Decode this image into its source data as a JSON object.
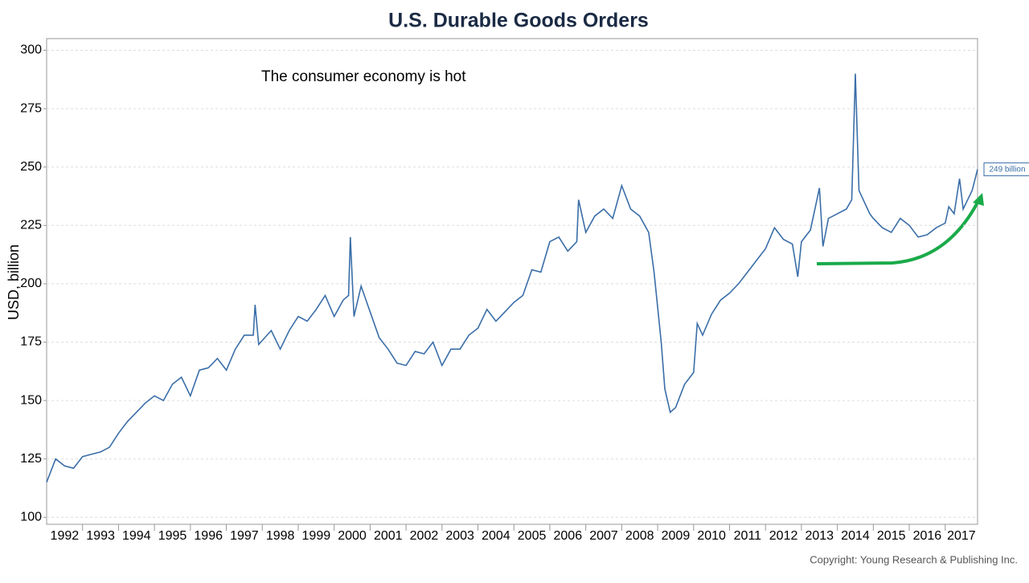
{
  "chart_data": {
    "type": "line",
    "title": "U.S. Durable Goods Orders",
    "y_label": "USD, billion",
    "annotation": "The consumer economy is hot",
    "end_label": "249 billion",
    "source": "Copyright: Young Research & Publishing Inc.",
    "color": "#3a6ea8",
    "x": [
      1992.0,
      1992.25,
      1992.5,
      1992.75,
      1993.0,
      1993.25,
      1993.5,
      1993.75,
      1994.0,
      1994.25,
      1994.5,
      1994.75,
      1995.0,
      1995.25,
      1995.5,
      1995.75,
      1996.0,
      1996.25,
      1996.5,
      1996.75,
      1997.0,
      1997.25,
      1997.5,
      1997.75,
      1997.8,
      1997.9,
      1998.25,
      1998.5,
      1998.75,
      1999.0,
      1999.25,
      1999.5,
      1999.75,
      2000.0,
      2000.25,
      2000.4,
      2000.45,
      2000.55,
      2000.75,
      2001.0,
      2001.25,
      2001.5,
      2001.75,
      2002.0,
      2002.25,
      2002.5,
      2002.75,
      2003.0,
      2003.25,
      2003.5,
      2003.75,
      2004.0,
      2004.25,
      2004.5,
      2004.75,
      2005.0,
      2005.25,
      2005.5,
      2005.75,
      2006.0,
      2006.25,
      2006.5,
      2006.75,
      2006.8,
      2007.0,
      2007.25,
      2007.5,
      2007.75,
      2008.0,
      2008.25,
      2008.5,
      2008.75,
      2008.9,
      2009.1,
      2009.2,
      2009.35,
      2009.5,
      2009.75,
      2010.0,
      2010.1,
      2010.25,
      2010.5,
      2010.75,
      2011.0,
      2011.25,
      2011.5,
      2011.75,
      2012.0,
      2012.25,
      2012.5,
      2012.75,
      2012.9,
      2013.0,
      2013.25,
      2013.5,
      2013.6,
      2013.75,
      2014.0,
      2014.25,
      2014.4,
      2014.5,
      2014.6,
      2014.9,
      2015.0,
      2015.25,
      2015.5,
      2015.75,
      2016.0,
      2016.25,
      2016.5,
      2016.75,
      2017.0,
      2017.1,
      2017.25,
      2017.4,
      2017.5,
      2017.75,
      2017.9
    ],
    "values": [
      115,
      125,
      122,
      121,
      126,
      127,
      128,
      130,
      136,
      141,
      145,
      149,
      152,
      150,
      157,
      160,
      152,
      163,
      164,
      168,
      163,
      172,
      178,
      178,
      191,
      174,
      180,
      172,
      180,
      186,
      184,
      189,
      195,
      186,
      193,
      195,
      220,
      186,
      199,
      188,
      177,
      172,
      166,
      165,
      171,
      170,
      175,
      165,
      172,
      172,
      178,
      181,
      189,
      184,
      188,
      192,
      195,
      206,
      205,
      218,
      220,
      214,
      218,
      236,
      222,
      229,
      232,
      228,
      242,
      232,
      229,
      222,
      205,
      175,
      155,
      145,
      147,
      157,
      162,
      183,
      178,
      187,
      193,
      196,
      200,
      205,
      210,
      215,
      224,
      219,
      217,
      203,
      218,
      223,
      241,
      216,
      228,
      230,
      232,
      236,
      290,
      240,
      230,
      228,
      224,
      222,
      228,
      225,
      220,
      221,
      224,
      226,
      233,
      230,
      245,
      232,
      240,
      249
    ],
    "xlim": [
      1992,
      2017.9
    ],
    "xticks": [
      1992,
      1993,
      1994,
      1995,
      1996,
      1997,
      1998,
      1999,
      2000,
      2001,
      2002,
      2003,
      2004,
      2005,
      2006,
      2007,
      2008,
      2009,
      2010,
      2011,
      2012,
      2013,
      2014,
      2015,
      2016,
      2017
    ],
    "ylim": [
      97,
      305
    ],
    "yticks": [
      100,
      125,
      150,
      175,
      200,
      225,
      250,
      275,
      300
    ],
    "grid": true
  }
}
